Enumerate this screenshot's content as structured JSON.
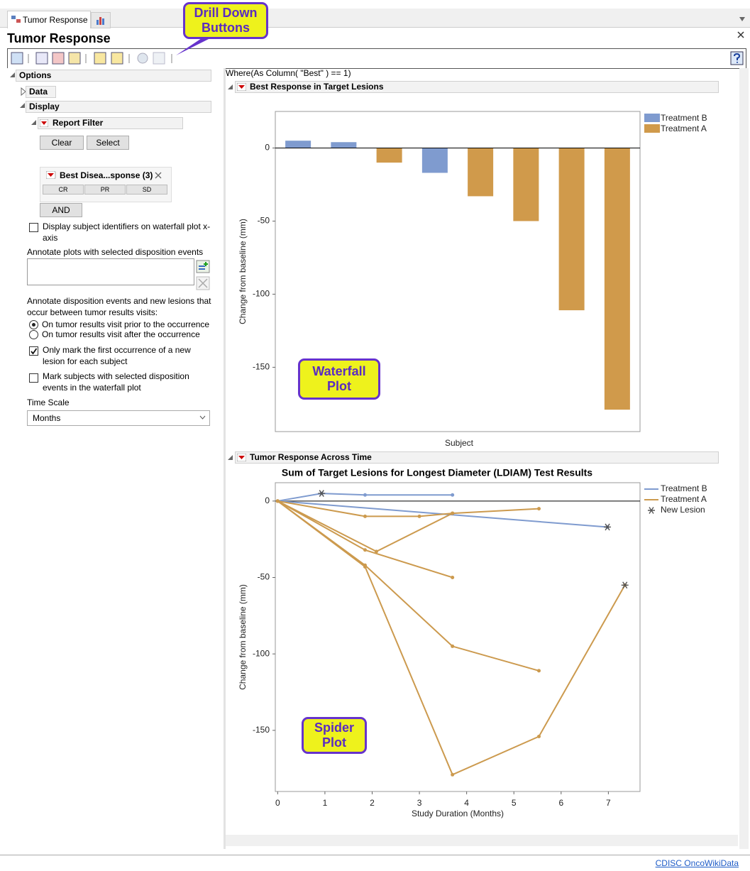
{
  "tab": {
    "label": "Tumor Response"
  },
  "title": "Tumor Response",
  "callouts": {
    "drill_down": "Drill Down Buttons",
    "waterfall": "Waterfall Plot",
    "spider": "Spider Plot"
  },
  "options": {
    "header": "Options",
    "data_header": "Data",
    "display_header": "Display",
    "report_filter": {
      "header": "Report Filter",
      "buttons": [
        "Clear",
        "Select"
      ],
      "filter_name": "Best Disea...sponse (3)",
      "levels": [
        "CR",
        "PR",
        "SD"
      ],
      "and_button": "AND"
    },
    "subject_ids": {
      "label": "Display subject identifiers on waterfall plot x-axis",
      "checked": false
    },
    "annotate_label": "Annotate plots with selected disposition events",
    "timing_label": "Annotate disposition events and new lesions that occur between tumor results visits:",
    "timing_options": [
      {
        "label": "On tumor results visit prior to the occurrence",
        "selected": true
      },
      {
        "label": "On tumor results visit after the occurrence",
        "selected": false
      }
    ],
    "first_occurrence": {
      "label": "Only mark the first occurrence of a new lesion for each subject",
      "checked": true
    },
    "mark_subjects": {
      "label": "Mark subjects with selected disposition events in the waterfall plot",
      "checked": false
    },
    "time_scale": {
      "label": "Time Scale",
      "value": "Months"
    }
  },
  "where_clause": "Where(As Column( \"Best\" ) == 1)",
  "chart_data": [
    {
      "type": "bar",
      "header": "Best Response in Target Lesions",
      "categories": [
        null,
        null,
        null,
        null,
        null,
        null,
        null,
        null
      ],
      "series": [
        {
          "name": "Treatment B",
          "color": "#7f9bcf",
          "values": [
            5,
            4,
            null,
            -17,
            null,
            null,
            null,
            null
          ]
        },
        {
          "name": "Treatment A",
          "color": "#d09a4b",
          "values": [
            null,
            null,
            -10,
            null,
            -33,
            -50,
            -111,
            -179
          ]
        }
      ],
      "xlabel": "Subject",
      "ylabel": "Change from baseline (mm)",
      "ylim": [
        -194,
        25
      ],
      "yticks": [
        -150,
        -100,
        -50,
        0
      ],
      "reference_line": 0
    },
    {
      "type": "line",
      "header": "Tumor Response Across Time",
      "title": "Sum of Target Lesions for Longest Diameter (LDIAM) Test Results",
      "series": [
        {
          "name": "Treatment B",
          "color": "#7f9bcf",
          "lines": [
            {
              "x": [
                0,
                0.93,
                1.85,
                3.7
              ],
              "values": [
                0,
                5,
                4,
                4
              ]
            },
            {
              "x": [
                0,
                6.98
              ],
              "values": [
                0,
                -17
              ]
            }
          ]
        },
        {
          "name": "Treatment A",
          "color": "#cc9a4e",
          "lines": [
            {
              "x": [
                0,
                1.85,
                3.0,
                3.7,
                5.53
              ],
              "values": [
                0,
                -10,
                -10,
                -8,
                -5
              ]
            },
            {
              "x": [
                0,
                2.09,
                3.7
              ],
              "values": [
                0,
                -33,
                -8
              ]
            },
            {
              "x": [
                0,
                1.85,
                3.7
              ],
              "values": [
                0,
                -32,
                -50
              ]
            },
            {
              "x": [
                0,
                1.85,
                3.7,
                5.53
              ],
              "values": [
                0,
                -42,
                -95,
                -111
              ]
            },
            {
              "x": [
                0,
                1.85,
                3.7,
                5.53,
                7.35
              ],
              "values": [
                0,
                -43,
                -179,
                -154,
                -55
              ]
            }
          ]
        },
        {
          "name": "New Lesion",
          "type": "scatter",
          "marker": "star",
          "color": "#555555",
          "x": [
            0.93,
            6.98,
            7.35
          ],
          "values": [
            5,
            -17,
            -55
          ]
        }
      ],
      "xlabel": "Study Duration (Months)",
      "ylabel": "Change from baseline (mm)",
      "xlim": [
        -0.05,
        7.67
      ],
      "xticks": [
        0,
        1,
        2,
        3,
        4,
        5,
        6,
        7
      ],
      "ylim": [
        -190,
        12
      ],
      "yticks": [
        -150,
        -100,
        -50,
        0
      ],
      "reference_line": 0
    }
  ],
  "footer_link": "CDISC OncoWikiData"
}
